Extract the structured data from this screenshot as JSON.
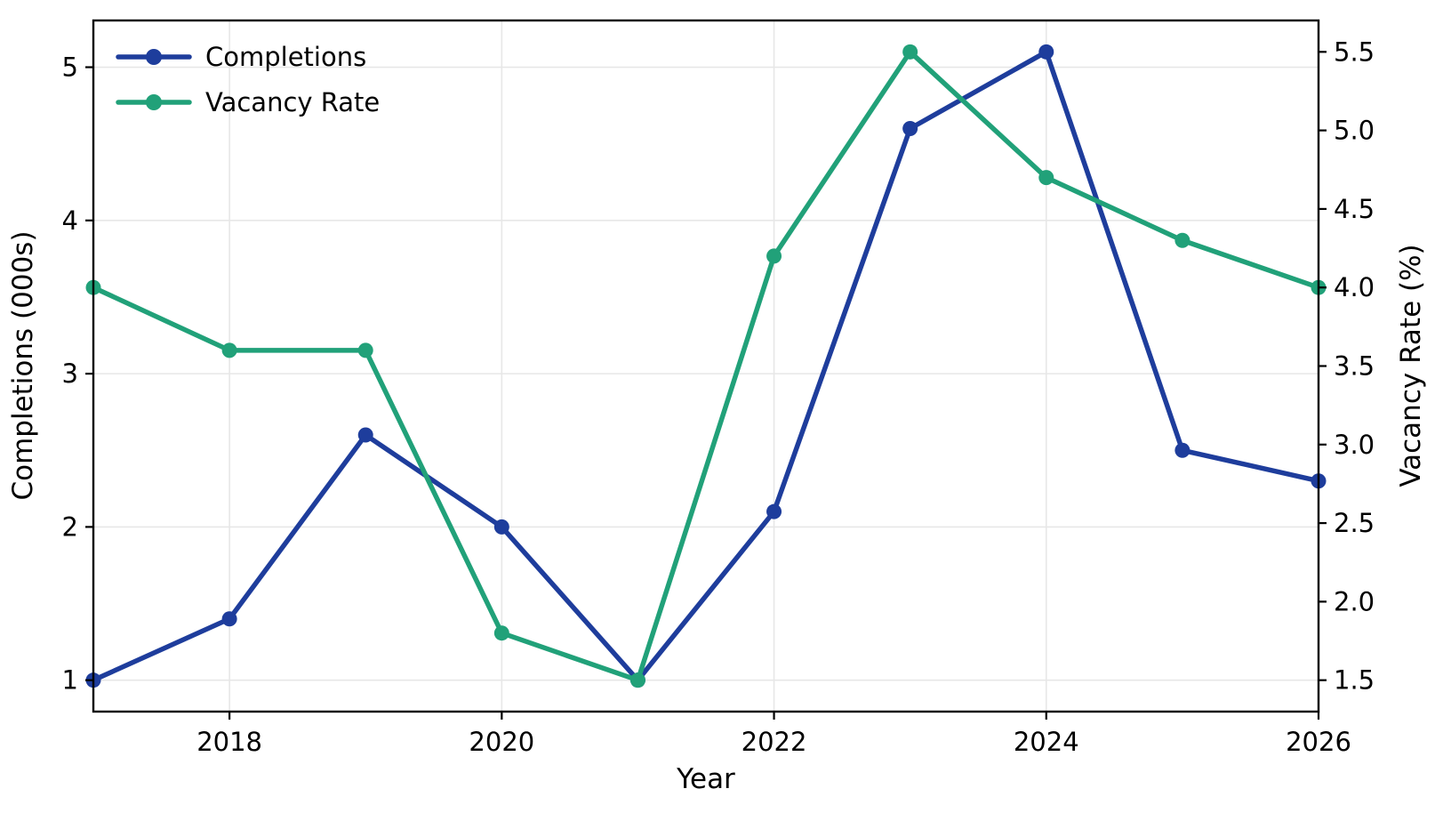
{
  "chart_data": {
    "type": "line",
    "x": [
      2017,
      2018,
      2019,
      2020,
      2021,
      2022,
      2023,
      2024,
      2025,
      2026
    ],
    "series": [
      {
        "name": "Completions",
        "axis": "left",
        "color": "#1e3d9c",
        "values": [
          1.0,
          1.4,
          2.6,
          2.0,
          1.0,
          2.1,
          4.6,
          5.1,
          2.5,
          2.3
        ]
      },
      {
        "name": "Vacancy Rate",
        "axis": "right",
        "color": "#21a179",
        "values": [
          4.0,
          3.6,
          3.6,
          1.8,
          1.5,
          4.2,
          5.5,
          4.7,
          4.3,
          4.0
        ]
      }
    ],
    "title": "",
    "xlabel": "Year",
    "ylabel_left": "Completions (000s)",
    "ylabel_right": "Vacancy Rate (%)",
    "xtick_labels": [
      "2018",
      "2020",
      "2022",
      "2024",
      "2026"
    ],
    "ytick_labels_left": [
      "1",
      "2",
      "3",
      "4",
      "5"
    ],
    "ytick_labels_right": [
      "1.5",
      "2.0",
      "2.5",
      "3.0",
      "3.5",
      "4.0",
      "4.5",
      "5.0",
      "5.5"
    ],
    "xlim": [
      2017,
      2026
    ],
    "ylim_left": [
      0.795,
      5.305
    ],
    "ylim_right": [
      1.3,
      5.7
    ],
    "grid": "on",
    "grid_color": "#e7e7e7",
    "spine_color": "#000000",
    "background_color": "#ffffff",
    "legend_position": "upper-left",
    "legend_entries": [
      "Completions",
      "Vacancy Rate"
    ]
  }
}
